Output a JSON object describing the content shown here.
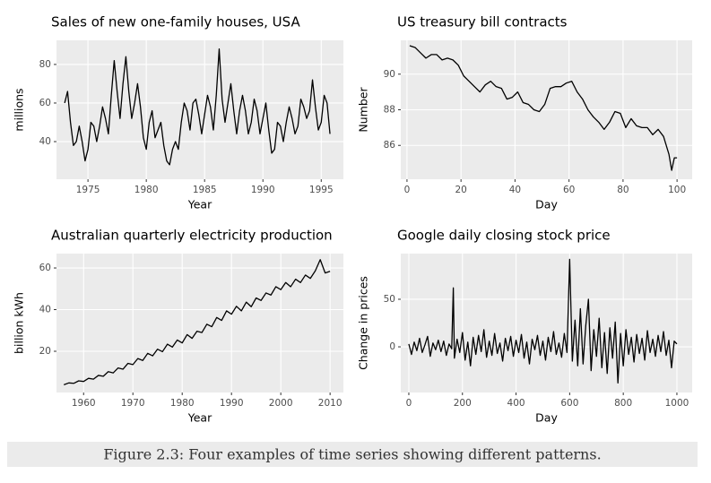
{
  "chart_data": [
    {
      "type": "line",
      "title": "Sales of new one-family houses, USA",
      "xlabel": "Year",
      "ylabel": "millions",
      "color": "#000000",
      "x": [
        1973,
        1973.25,
        1973.5,
        1973.75,
        1974,
        1974.25,
        1974.5,
        1974.75,
        1975,
        1975.25,
        1975.5,
        1975.75,
        1976,
        1976.25,
        1976.5,
        1976.75,
        1977,
        1977.25,
        1977.5,
        1977.75,
        1978,
        1978.25,
        1978.5,
        1978.75,
        1979,
        1979.25,
        1979.5,
        1979.75,
        1980,
        1980.25,
        1980.5,
        1980.75,
        1981,
        1981.25,
        1981.5,
        1981.75,
        1982,
        1982.25,
        1982.5,
        1982.75,
        1983,
        1983.25,
        1983.5,
        1983.75,
        1984,
        1984.25,
        1984.5,
        1984.75,
        1985,
        1985.25,
        1985.5,
        1985.75,
        1986,
        1986.25,
        1986.5,
        1986.75,
        1987,
        1987.25,
        1987.5,
        1987.75,
        1988,
        1988.25,
        1988.5,
        1988.75,
        1989,
        1989.25,
        1989.5,
        1989.75,
        1990,
        1990.25,
        1990.5,
        1990.75,
        1991,
        1991.25,
        1991.5,
        1991.75,
        1992,
        1992.25,
        1992.5,
        1992.75,
        1993,
        1993.25,
        1993.5,
        1993.75,
        1994,
        1994.25,
        1994.5,
        1994.75,
        1995,
        1995.25,
        1995.5,
        1995.75
      ],
      "values": [
        60,
        66,
        50,
        38,
        40,
        48,
        40,
        30,
        36,
        50,
        48,
        40,
        48,
        58,
        52,
        44,
        64,
        82,
        66,
        52,
        70,
        84,
        66,
        52,
        60,
        70,
        58,
        42,
        36,
        50,
        56,
        42,
        46,
        50,
        38,
        30,
        28,
        36,
        40,
        36,
        50,
        60,
        56,
        46,
        60,
        62,
        54,
        44,
        54,
        64,
        58,
        46,
        64,
        88,
        62,
        50,
        60,
        70,
        56,
        44,
        56,
        64,
        56,
        44,
        50,
        62,
        56,
        44,
        52,
        60,
        46,
        34,
        36,
        50,
        48,
        40,
        50,
        58,
        52,
        44,
        48,
        62,
        58,
        52,
        56,
        72,
        58,
        46,
        50,
        64,
        60,
        44
      ],
      "xlim": [
        1972.3,
        1996.9
      ],
      "ylim": [
        20.5,
        92.5
      ],
      "xticks": [
        1975,
        1980,
        1985,
        1990,
        1995
      ],
      "yticks": [
        40,
        60,
        80
      ]
    },
    {
      "type": "line",
      "title": "US treasury bill contracts",
      "xlabel": "Day",
      "ylabel": "Number",
      "color": "#000000",
      "x": [
        1,
        3,
        5,
        7,
        9,
        11,
        13,
        15,
        17,
        19,
        21,
        23,
        25,
        27,
        29,
        31,
        33,
        35,
        37,
        39,
        41,
        43,
        45,
        47,
        49,
        51,
        53,
        55,
        57,
        59,
        61,
        63,
        65,
        67,
        69,
        71,
        73,
        75,
        77,
        79,
        81,
        83,
        85,
        87,
        89,
        91,
        93,
        95,
        97,
        98,
        99,
        100
      ],
      "values": [
        91.6,
        91.5,
        91.2,
        90.9,
        91.1,
        91.1,
        90.8,
        90.9,
        90.8,
        90.5,
        89.9,
        89.6,
        89.3,
        89.0,
        89.4,
        89.6,
        89.3,
        89.2,
        88.6,
        88.7,
        89.0,
        88.4,
        88.3,
        88.0,
        87.9,
        88.3,
        89.2,
        89.3,
        89.3,
        89.5,
        89.6,
        89.0,
        88.6,
        88.0,
        87.6,
        87.3,
        86.9,
        87.3,
        87.9,
        87.8,
        87.0,
        87.5,
        87.1,
        87.0,
        87.0,
        86.6,
        86.9,
        86.5,
        85.5,
        84.6,
        85.3,
        85.3
      ],
      "xlim": [
        -2.3,
        105.6
      ],
      "ylim": [
        84.1,
        91.9
      ],
      "xticks": [
        0,
        20,
        40,
        60,
        80,
        100
      ],
      "yticks": [
        86,
        88,
        90
      ]
    },
    {
      "type": "line",
      "title": "Australian quarterly electricity production",
      "xlabel": "Year",
      "ylabel": "billion kWh",
      "color": "#000000",
      "x": [
        1956,
        1957,
        1958,
        1959,
        1960,
        1961,
        1962,
        1963,
        1964,
        1965,
        1966,
        1967,
        1968,
        1969,
        1970,
        1971,
        1972,
        1973,
        1974,
        1975,
        1976,
        1977,
        1978,
        1979,
        1980,
        1981,
        1982,
        1983,
        1984,
        1985,
        1986,
        1987,
        1988,
        1989,
        1990,
        1991,
        1992,
        1993,
        1994,
        1995,
        1996,
        1997,
        1998,
        1999,
        2000,
        2001,
        2002,
        2003,
        2004,
        2005,
        2006,
        2007,
        2008,
        2009,
        2010
      ],
      "values": [
        3.9,
        4.8,
        4.6,
        5.8,
        5.5,
        7.0,
        6.6,
        8.4,
        8.0,
        10.2,
        9.6,
        12.0,
        11.4,
        14.2,
        13.6,
        16.5,
        15.6,
        19.0,
        17.8,
        21.0,
        19.8,
        23.4,
        22.0,
        25.4,
        24.0,
        28.0,
        26.2,
        29.6,
        29.0,
        33.0,
        31.8,
        36.2,
        34.8,
        39.4,
        37.8,
        41.6,
        39.4,
        43.6,
        41.4,
        45.6,
        44.4,
        48.0,
        47.0,
        51.0,
        49.6,
        53.0,
        51.0,
        54.6,
        53.0,
        56.6,
        55.0,
        58.6,
        64.0,
        57.6,
        58.4
      ],
      "xlim": [
        1954.5,
        2012.7
      ],
      "ylim": [
        0.2,
        66.9
      ],
      "xticks": [
        1960,
        1970,
        1980,
        1990,
        2000,
        2010
      ],
      "yticks": [
        20,
        40,
        60
      ]
    },
    {
      "type": "line",
      "title": "Google daily closing stock price",
      "xlabel": "Day",
      "ylabel": "Change in prices",
      "color": "#000000",
      "x": [
        0,
        10,
        20,
        30,
        40,
        50,
        60,
        70,
        80,
        90,
        100,
        110,
        120,
        130,
        140,
        150,
        160,
        166,
        170,
        180,
        190,
        200,
        210,
        220,
        230,
        240,
        250,
        260,
        270,
        280,
        290,
        300,
        310,
        320,
        330,
        340,
        350,
        360,
        370,
        380,
        390,
        400,
        410,
        420,
        430,
        440,
        450,
        460,
        470,
        480,
        490,
        500,
        510,
        520,
        530,
        540,
        550,
        560,
        570,
        580,
        590,
        600,
        610,
        620,
        630,
        640,
        650,
        660,
        670,
        680,
        690,
        700,
        710,
        720,
        730,
        740,
        750,
        760,
        770,
        780,
        790,
        800,
        810,
        820,
        830,
        840,
        850,
        860,
        870,
        880,
        890,
        900,
        910,
        920,
        930,
        940,
        950,
        960,
        970,
        980,
        990,
        1000
      ],
      "values": [
        3,
        -8,
        5,
        -4,
        9,
        -6,
        2,
        11,
        -10,
        4,
        -3,
        7,
        -5,
        6,
        -9,
        3,
        -2,
        62,
        -12,
        8,
        -6,
        15,
        -14,
        5,
        -20,
        10,
        -8,
        12,
        -5,
        18,
        -11,
        6,
        -9,
        14,
        -7,
        4,
        -15,
        9,
        -4,
        11,
        -10,
        7,
        -6,
        13,
        -12,
        5,
        -18,
        8,
        -3,
        12,
        -9,
        6,
        -14,
        10,
        -5,
        16,
        -8,
        4,
        -11,
        14,
        -6,
        92,
        -15,
        28,
        -20,
        40,
        -18,
        22,
        50,
        -25,
        18,
        -10,
        30,
        -22,
        15,
        -28,
        20,
        -12,
        26,
        -38,
        14,
        -20,
        18,
        -8,
        10,
        -16,
        13,
        -7,
        9,
        -14,
        17,
        -6,
        8,
        -10,
        12,
        -5,
        16,
        -9,
        7,
        -22,
        6,
        3
      ],
      "xlim": [
        -30,
        1057
      ],
      "ylim": [
        -48,
        98
      ],
      "xticks": [
        0,
        200,
        400,
        600,
        800,
        1000
      ],
      "yticks": [
        0,
        50
      ]
    }
  ],
  "caption": "Figure 2.3: Four examples of time series showing different patterns."
}
